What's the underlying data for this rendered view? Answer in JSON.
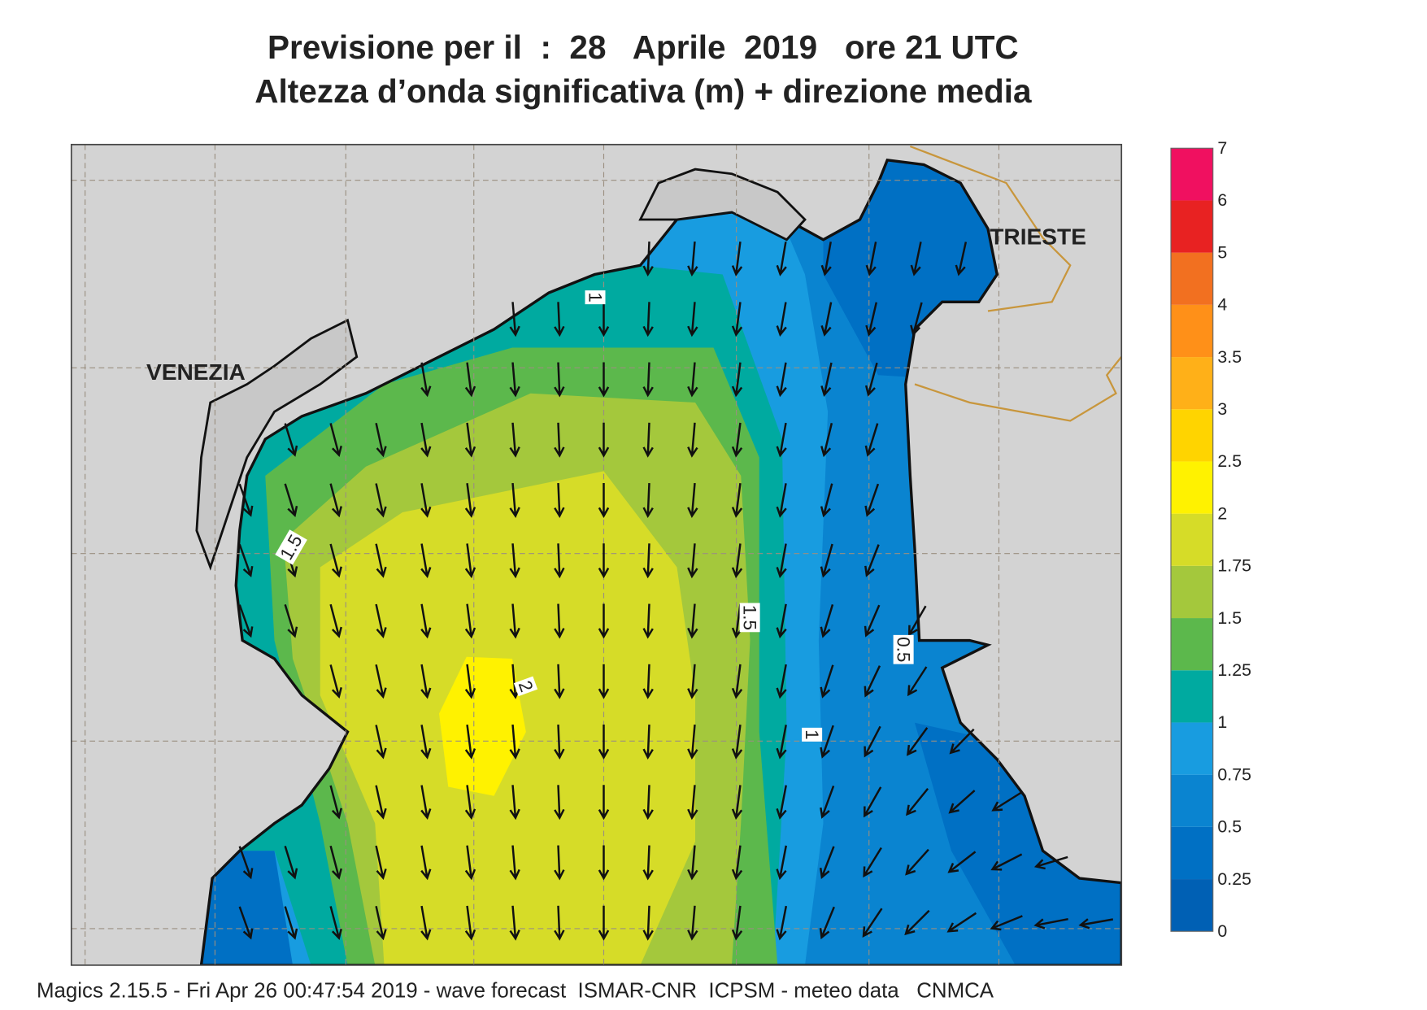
{
  "header": {
    "title": "Previsione per il  :  28   Aprile  2019   ore 21 UTC",
    "subtitle": "Altezza d’onda significativa (m) + direzione media"
  },
  "map": {
    "places": [
      "VENEZIA",
      "TRIESTE"
    ],
    "contour_labels": [
      "1",
      "1.5",
      "1.5",
      "0.5",
      "2",
      "1"
    ]
  },
  "colorbar": {
    "levels": [
      0,
      0.25,
      0.5,
      0.75,
      1,
      1.25,
      1.5,
      1.75,
      2,
      2.5,
      3,
      3.5,
      4,
      5,
      6,
      7
    ],
    "colors": [
      "#0060b4",
      "#0070c4",
      "#0a84d0",
      "#189ce0",
      "#00aaa0",
      "#5cb84c",
      "#a4c83c",
      "#d6dc28",
      "#fff200",
      "#ffd400",
      "#ffb018",
      "#ff9018",
      "#f27020",
      "#e82222",
      "#f01060"
    ]
  },
  "footer": "Magics 2.15.5 - Fri Apr 26 00:47:54 2019 - wave forecast  ISMAR-CNR  ICPSM - meteo data   CNMCA"
}
